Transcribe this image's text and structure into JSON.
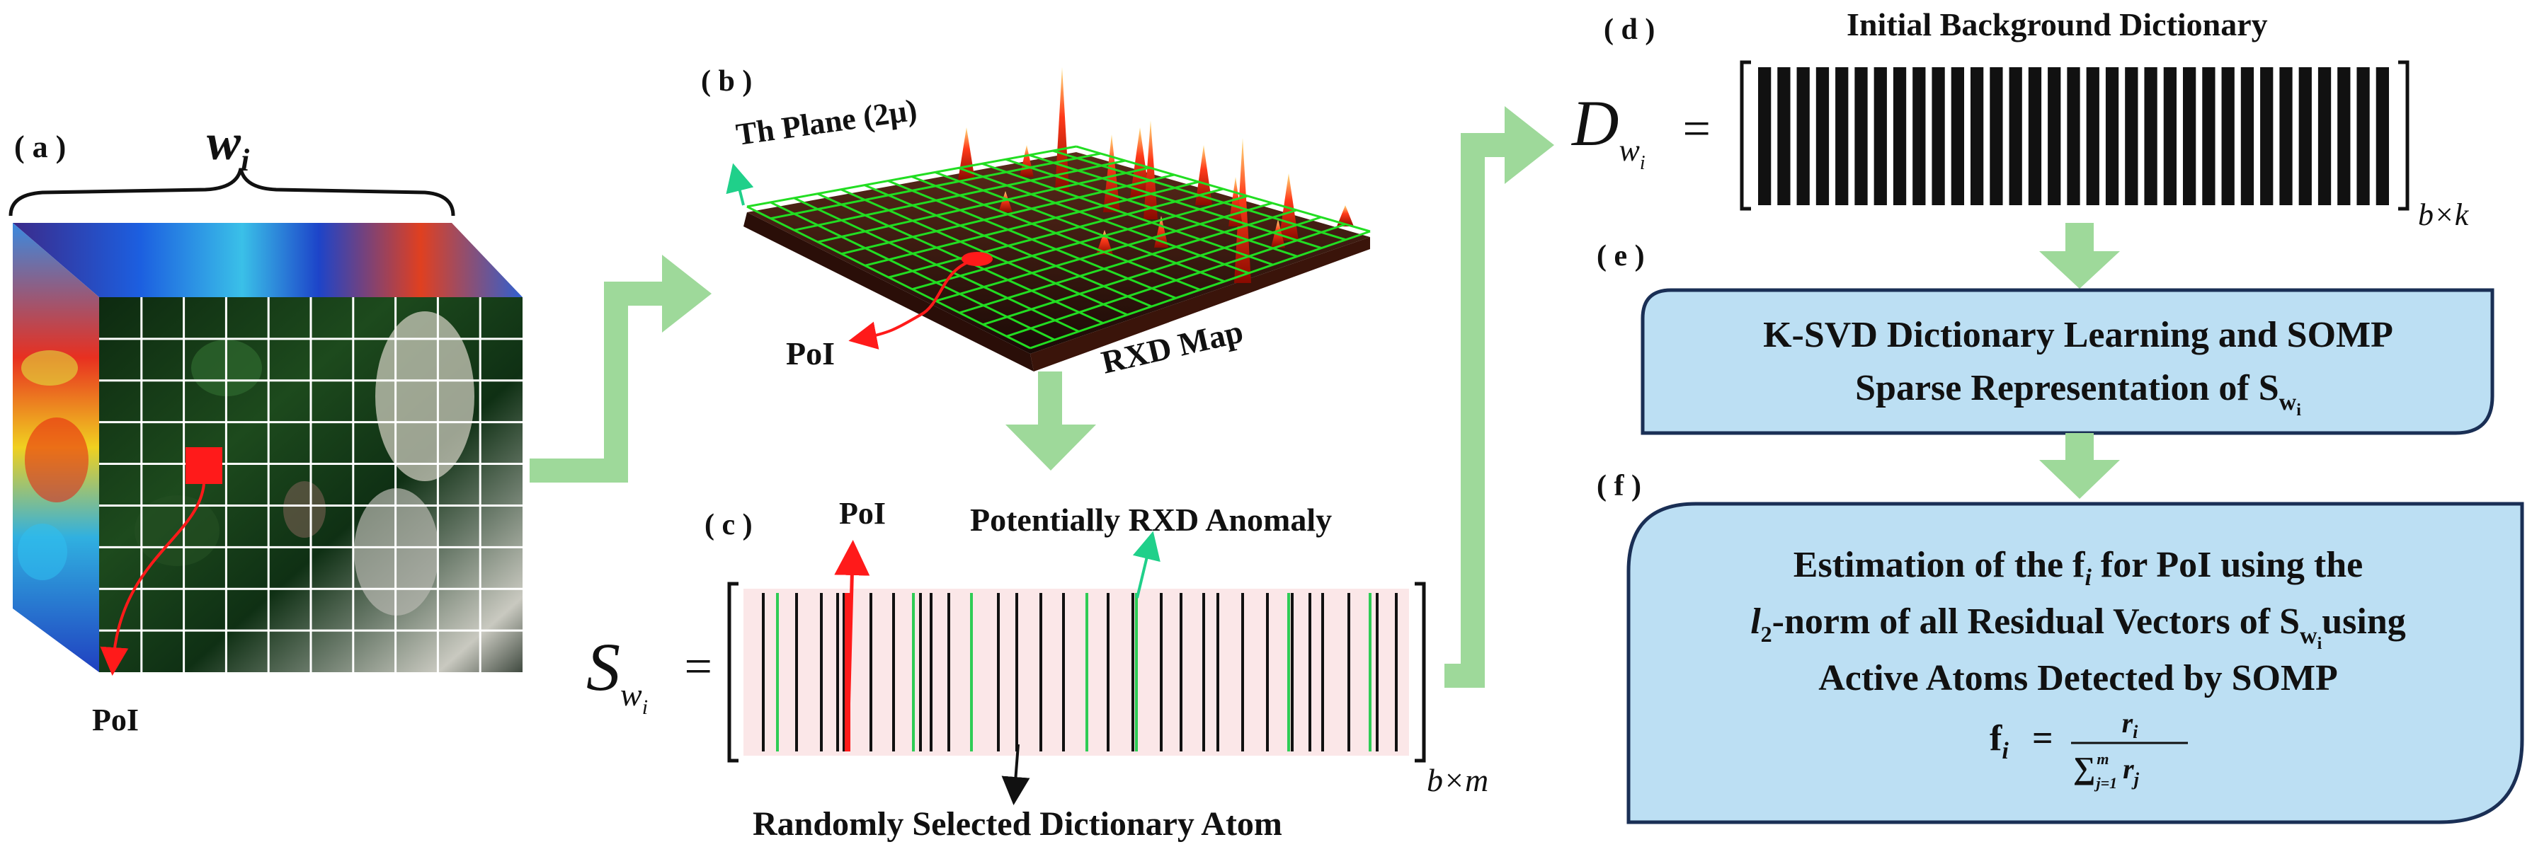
{
  "colors": {
    "arrow_green": "#9ed99a",
    "box_fill": "#bcdff3",
    "box_stroke": "#1a2f55",
    "poi_red": "#ff1a1a",
    "dict_pink": "#fbe7e8",
    "atom_green": "#2ecc55"
  },
  "panel_a": {
    "tag": "( a )",
    "window": "w",
    "window_sub": "i",
    "poi": "PoI"
  },
  "panel_b": {
    "tag": "( b )",
    "th_plane": "Th Plane (2μ)",
    "poi": "PoI",
    "rxd_map": "RXD Map"
  },
  "panel_c": {
    "tag": "( c )",
    "poi": "PoI",
    "potential": "Potentially RXD Anomaly",
    "random_atom": "Randomly Selected Dictionary Atom",
    "s_main": "S",
    "s_sub": "w",
    "s_subsub": "i",
    "equals": "=",
    "dim": "b×m"
  },
  "panel_d": {
    "tag": "( d )",
    "title": "Initial Background Dictionary",
    "d_main": "D",
    "d_sub": "w",
    "d_subsub": "i",
    "equals": "=",
    "dim": "b×k"
  },
  "panel_e": {
    "tag": "( e )",
    "line1": "K-SVD Dictionary Learning and SOMP",
    "line2": "Sparse Representation of S",
    "line2_sub": "w",
    "line2_subsub": "i"
  },
  "panel_f": {
    "tag": "( f )",
    "line1": "Estimation of the f",
    "line1_sub": "i",
    "line1_end": " for PoI using  the",
    "line2_l": "l",
    "line2_l_sub": "2",
    "line2_mid": "-norm of all Residual Vectors of S",
    "line2_sub": "w",
    "line2_subsub": "i",
    "line2_end": "using",
    "line3": "Active Atoms Detected by SOMP",
    "formula_lhs": "f",
    "formula_lhs_sub": "i",
    "formula_eq": "=",
    "formula_num": "r",
    "formula_num_sub": "i",
    "formula_den": "∑",
    "formula_den_sup": "m",
    "formula_den_sub": "j=1",
    "formula_den_r": "r",
    "formula_den_r_sub": "j"
  }
}
